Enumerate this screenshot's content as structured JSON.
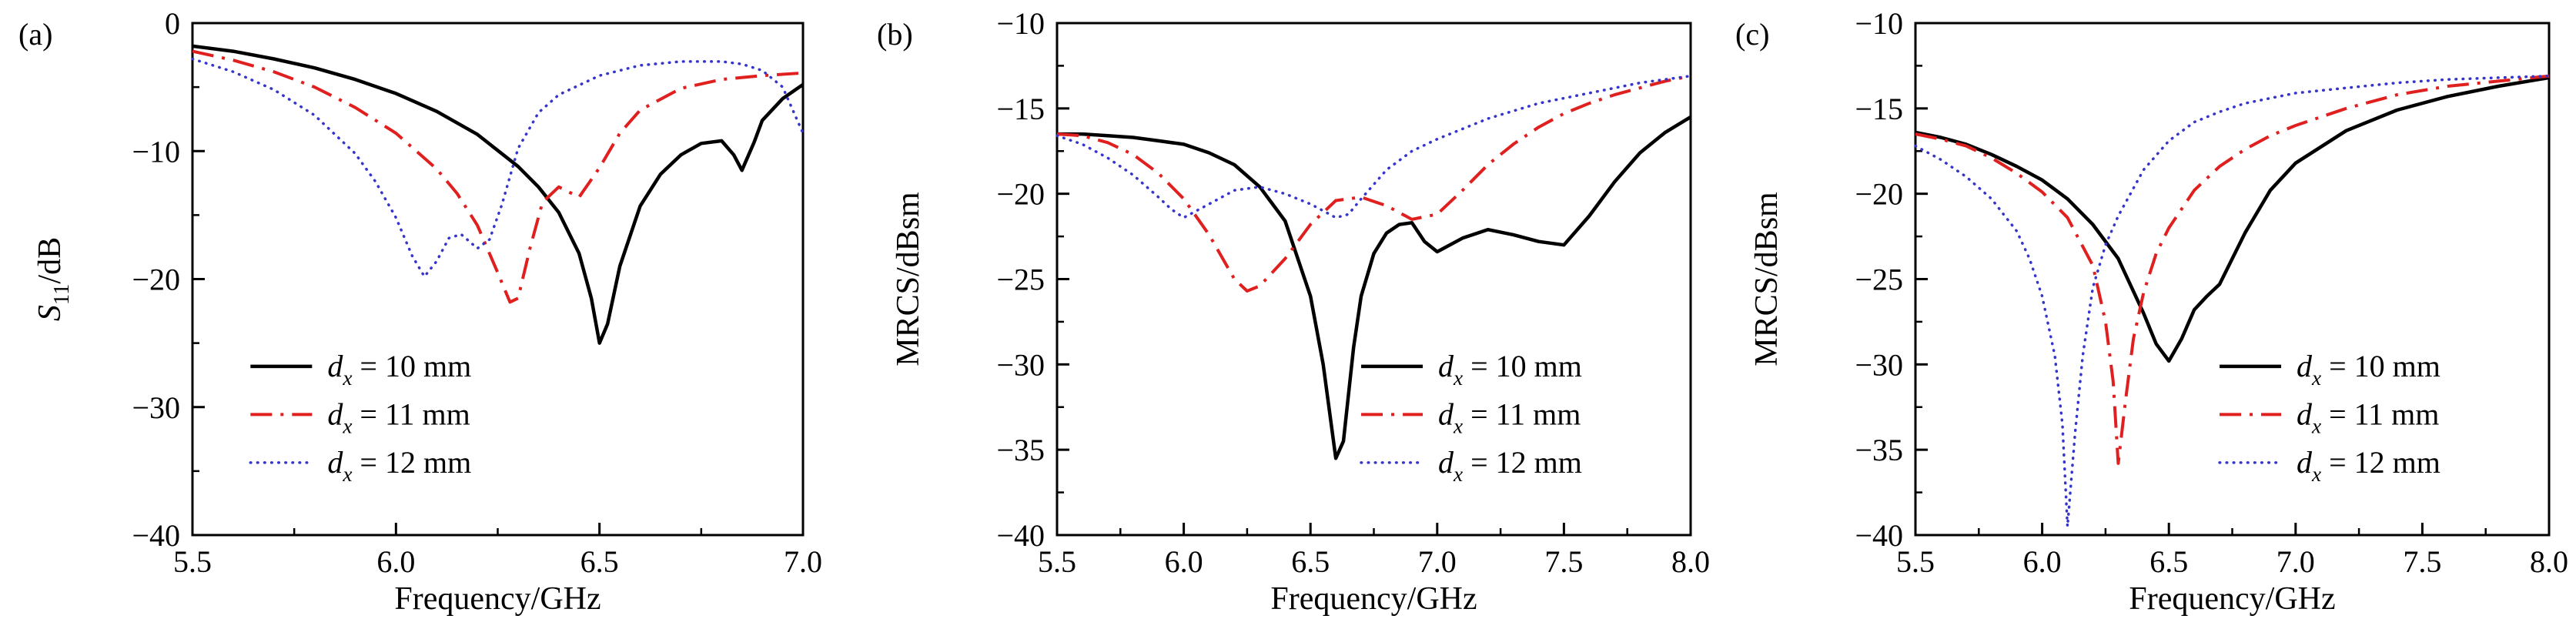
{
  "figure": {
    "background": "#ffffff",
    "axis_color": "#000000",
    "text_color": "#000000"
  },
  "chart_data": [
    {
      "type": "line",
      "panel_label": "(a)",
      "xlabel": "Frequency/GHz",
      "ylabel": "S11/dB",
      "ylabel_parts": [
        {
          "t": "S",
          "style": "italic"
        },
        {
          "t": "11",
          "sub": true
        },
        {
          "t": "/dB"
        }
      ],
      "xlim": [
        5.5,
        7.0
      ],
      "ylim": [
        -40,
        0
      ],
      "xticks": [
        5.5,
        6.0,
        6.5,
        7.0
      ],
      "xtick_labels": [
        "5.5",
        "6.0",
        "6.5",
        "7.0"
      ],
      "yticks": [
        0,
        -10,
        -20,
        -30,
        -40
      ],
      "ytick_labels": [
        "0",
        "−10",
        "−20",
        "−30",
        "−40"
      ],
      "x_minor_step": 0.25,
      "y_minor_step": 5,
      "grid": false,
      "legend": {
        "fx": 0.095,
        "fy": 0.69,
        "row_h": 0.094
      },
      "margins": {
        "l": 250,
        "r": 72,
        "t": 30,
        "b": 122
      },
      "series": [
        {
          "name": "dx = 10 mm",
          "label_parts": [
            {
              "t": "d",
              "style": "italic"
            },
            {
              "t": "x",
              "sub": true,
              "style": "italic"
            },
            {
              "t": " = 10 mm"
            }
          ],
          "color": "#000000",
          "dash": "solid",
          "width": 4.5,
          "x": [
            5.5,
            5.6,
            5.7,
            5.8,
            5.9,
            6.0,
            6.1,
            6.2,
            6.3,
            6.35,
            6.4,
            6.45,
            6.48,
            6.5,
            6.52,
            6.55,
            6.6,
            6.65,
            6.7,
            6.75,
            6.8,
            6.83,
            6.85,
            6.88,
            6.9,
            6.95,
            7.0
          ],
          "y": [
            -1.8,
            -2.2,
            -2.8,
            -3.5,
            -4.4,
            -5.5,
            -6.9,
            -8.7,
            -11.2,
            -12.8,
            -14.8,
            -18,
            -21.5,
            -25,
            -23.5,
            -19,
            -14.3,
            -11.8,
            -10.3,
            -9.4,
            -9.2,
            -10.3,
            -11.5,
            -9.3,
            -7.6,
            -5.9,
            -4.8
          ]
        },
        {
          "name": "dx = 11 mm",
          "label_parts": [
            {
              "t": "d",
              "style": "italic"
            },
            {
              "t": "x",
              "sub": true,
              "style": "italic"
            },
            {
              "t": " = 11 mm"
            }
          ],
          "color": "#e01f1f",
          "dash": "dashdot",
          "width": 4,
          "x": [
            5.5,
            5.6,
            5.7,
            5.8,
            5.9,
            6.0,
            6.1,
            6.15,
            6.2,
            6.25,
            6.28,
            6.3,
            6.33,
            6.36,
            6.4,
            6.45,
            6.5,
            6.55,
            6.6,
            6.7,
            6.8,
            6.9,
            7.0
          ],
          "y": [
            -2.2,
            -2.9,
            -3.8,
            -5.0,
            -6.6,
            -8.6,
            -11.4,
            -13.3,
            -15.8,
            -19.5,
            -21.8,
            -21.5,
            -17.5,
            -14.0,
            -12.8,
            -13.6,
            -11.3,
            -8.6,
            -6.8,
            -5.1,
            -4.4,
            -4.1,
            -3.9
          ]
        },
        {
          "name": "dx = 12 mm",
          "label_parts": [
            {
              "t": "d",
              "style": "italic"
            },
            {
              "t": "x",
              "sub": true,
              "style": "italic"
            },
            {
              "t": " = 12 mm"
            }
          ],
          "color": "#3535cc",
          "dash": "dot",
          "width": 3.5,
          "x": [
            5.5,
            5.6,
            5.7,
            5.8,
            5.9,
            5.95,
            6.0,
            6.04,
            6.07,
            6.1,
            6.13,
            6.16,
            6.2,
            6.23,
            6.26,
            6.3,
            6.35,
            6.4,
            6.5,
            6.6,
            6.7,
            6.8,
            6.85,
            6.9,
            6.95,
            7.0
          ],
          "y": [
            -2.8,
            -3.8,
            -5.2,
            -7.2,
            -10.2,
            -12.4,
            -15.2,
            -18.2,
            -19.8,
            -18.6,
            -16.8,
            -16.5,
            -17.6,
            -16.9,
            -14.2,
            -9.8,
            -7.0,
            -5.6,
            -4.1,
            -3.3,
            -3.0,
            -3.0,
            -3.2,
            -3.7,
            -5.0,
            -8.6
          ]
        }
      ]
    },
    {
      "type": "line",
      "panel_label": "(b)",
      "xlabel": "Frequency/GHz",
      "ylabel": "MRCS/dBsm",
      "ylabel_parts": [
        {
          "t": "MRCS/dBsm"
        }
      ],
      "xlim": [
        5.5,
        8.0
      ],
      "ylim": [
        -40,
        -10
      ],
      "xticks": [
        5.5,
        6.0,
        6.5,
        7.0,
        7.5,
        8.0
      ],
      "xtick_labels": [
        "5.5",
        "6.0",
        "6.5",
        "7.0",
        "7.5",
        "8.0"
      ],
      "yticks": [
        -10,
        -15,
        -20,
        -25,
        -30,
        -35,
        -40
      ],
      "ytick_labels": [
        "−10",
        "−15",
        "−20",
        "−25",
        "−30",
        "−35",
        "−40"
      ],
      "x_minor_step": 0.25,
      "y_minor_step": 2.5,
      "grid": false,
      "legend": {
        "fx": 0.48,
        "fy": 0.69,
        "row_h": 0.094
      },
      "margins": {
        "l": 258,
        "r": 34,
        "t": 30,
        "b": 122
      },
      "series": [
        {
          "name": "dx = 10 mm",
          "label_parts": [
            {
              "t": "d",
              "style": "italic"
            },
            {
              "t": "x",
              "sub": true,
              "style": "italic"
            },
            {
              "t": " = 10 mm"
            }
          ],
          "color": "#000000",
          "dash": "solid",
          "width": 4.5,
          "x": [
            5.5,
            5.6,
            5.7,
            5.8,
            5.9,
            6.0,
            6.1,
            6.2,
            6.3,
            6.4,
            6.5,
            6.55,
            6.6,
            6.63,
            6.67,
            6.7,
            6.75,
            6.8,
            6.85,
            6.9,
            6.95,
            7.0,
            7.1,
            7.2,
            7.3,
            7.4,
            7.5,
            7.6,
            7.7,
            7.8,
            7.9,
            8.0
          ],
          "y": [
            -16.5,
            -16.5,
            -16.6,
            -16.7,
            -16.9,
            -17.1,
            -17.6,
            -18.3,
            -19.6,
            -21.6,
            -26.0,
            -30.0,
            -35.5,
            -34.5,
            -29.0,
            -26.0,
            -23.5,
            -22.3,
            -21.8,
            -21.7,
            -22.8,
            -23.4,
            -22.6,
            -22.1,
            -22.4,
            -22.8,
            -23.0,
            -21.3,
            -19.3,
            -17.6,
            -16.4,
            -15.5
          ]
        },
        {
          "name": "dx = 11 mm",
          "label_parts": [
            {
              "t": "d",
              "style": "italic"
            },
            {
              "t": "x",
              "sub": true,
              "style": "italic"
            },
            {
              "t": " = 11 mm"
            }
          ],
          "color": "#e01f1f",
          "dash": "dashdot",
          "width": 4,
          "x": [
            5.5,
            5.6,
            5.7,
            5.8,
            5.9,
            6.0,
            6.1,
            6.2,
            6.25,
            6.3,
            6.4,
            6.5,
            6.6,
            6.7,
            6.8,
            6.9,
            7.0,
            7.1,
            7.2,
            7.3,
            7.4,
            7.5,
            7.6,
            7.7,
            7.8,
            7.9,
            8.0
          ],
          "y": [
            -16.5,
            -16.6,
            -17.0,
            -17.7,
            -18.8,
            -20.3,
            -22.4,
            -25.0,
            -25.7,
            -25.4,
            -23.8,
            -21.8,
            -20.4,
            -20.2,
            -20.7,
            -21.5,
            -21.2,
            -19.8,
            -18.3,
            -17.1,
            -16.1,
            -15.3,
            -14.7,
            -14.2,
            -13.8,
            -13.4,
            -13.1
          ]
        },
        {
          "name": "dx = 12 mm",
          "label_parts": [
            {
              "t": "d",
              "style": "italic"
            },
            {
              "t": "x",
              "sub": true,
              "style": "italic"
            },
            {
              "t": " = 12 mm"
            }
          ],
          "color": "#3535cc",
          "dash": "dot",
          "width": 3.5,
          "x": [
            5.5,
            5.6,
            5.7,
            5.8,
            5.9,
            5.95,
            6.0,
            6.1,
            6.2,
            6.3,
            6.4,
            6.5,
            6.55,
            6.6,
            6.65,
            6.7,
            6.8,
            6.9,
            7.0,
            7.2,
            7.4,
            7.6,
            7.8,
            8.0
          ],
          "y": [
            -16.6,
            -17.1,
            -17.9,
            -18.9,
            -20.2,
            -20.9,
            -21.4,
            -20.6,
            -19.8,
            -19.6,
            -20.0,
            -20.6,
            -21.0,
            -21.4,
            -21.2,
            -20.3,
            -18.6,
            -17.5,
            -16.8,
            -15.6,
            -14.7,
            -14.1,
            -13.5,
            -13.1
          ]
        }
      ]
    },
    {
      "type": "line",
      "panel_label": "(c)",
      "xlabel": "Frequency/GHz",
      "ylabel": "MRCS/dBsm",
      "ylabel_parts": [
        {
          "t": "MRCS/dBsm"
        }
      ],
      "xlim": [
        5.5,
        8.0
      ],
      "ylim": [
        -40,
        -10
      ],
      "xticks": [
        5.5,
        6.0,
        6.5,
        7.0,
        7.5,
        8.0
      ],
      "xtick_labels": [
        "5.5",
        "6.0",
        "6.5",
        "7.0",
        "7.5",
        "8.0"
      ],
      "yticks": [
        -10,
        -15,
        -20,
        -25,
        -30,
        -35,
        -40
      ],
      "ytick_labels": [
        "−10",
        "−15",
        "−20",
        "−25",
        "−30",
        "−35",
        "−40"
      ],
      "x_minor_step": 0.25,
      "y_minor_step": 2.5,
      "grid": false,
      "legend": {
        "fx": 0.48,
        "fy": 0.69,
        "row_h": 0.094
      },
      "margins": {
        "l": 258,
        "r": 34,
        "t": 30,
        "b": 122
      },
      "series": [
        {
          "name": "dx = 10 mm",
          "label_parts": [
            {
              "t": "d",
              "style": "italic"
            },
            {
              "t": "x",
              "sub": true,
              "style": "italic"
            },
            {
              "t": " = 10 mm"
            }
          ],
          "color": "#000000",
          "dash": "solid",
          "width": 4.5,
          "x": [
            5.5,
            5.6,
            5.7,
            5.8,
            5.9,
            6.0,
            6.1,
            6.2,
            6.3,
            6.4,
            6.45,
            6.5,
            6.55,
            6.6,
            6.65,
            6.7,
            6.8,
            6.9,
            7.0,
            7.2,
            7.4,
            7.6,
            7.8,
            8.0
          ],
          "y": [
            -16.4,
            -16.7,
            -17.1,
            -17.7,
            -18.4,
            -19.2,
            -20.3,
            -21.8,
            -23.8,
            -27.0,
            -28.8,
            -29.8,
            -28.5,
            -26.8,
            -26.0,
            -25.3,
            -22.3,
            -19.8,
            -18.2,
            -16.3,
            -15.1,
            -14.3,
            -13.7,
            -13.2
          ]
        },
        {
          "name": "dx = 11 mm",
          "label_parts": [
            {
              "t": "d",
              "style": "italic"
            },
            {
              "t": "x",
              "sub": true,
              "style": "italic"
            },
            {
              "t": " = 11 mm"
            }
          ],
          "color": "#e01f1f",
          "dash": "dashdot",
          "width": 4,
          "x": [
            5.5,
            5.6,
            5.7,
            5.8,
            5.9,
            6.0,
            6.1,
            6.2,
            6.25,
            6.28,
            6.3,
            6.33,
            6.36,
            6.4,
            6.45,
            6.5,
            6.6,
            6.7,
            6.8,
            6.9,
            7.0,
            7.2,
            7.4,
            7.6,
            7.8,
            8.0
          ],
          "y": [
            -16.5,
            -16.8,
            -17.2,
            -17.9,
            -18.8,
            -19.9,
            -21.4,
            -24.2,
            -27.5,
            -31.0,
            -35.8,
            -32.0,
            -28.5,
            -25.8,
            -23.5,
            -22.0,
            -19.8,
            -18.4,
            -17.4,
            -16.6,
            -16.0,
            -15.0,
            -14.2,
            -13.7,
            -13.4,
            -13.1
          ]
        },
        {
          "name": "dx = 12 mm",
          "label_parts": [
            {
              "t": "d",
              "style": "italic"
            },
            {
              "t": "x",
              "sub": true,
              "style": "italic"
            },
            {
              "t": " = 12 mm"
            }
          ],
          "color": "#3535cc",
          "dash": "dot",
          "width": 3.5,
          "x": [
            5.5,
            5.6,
            5.7,
            5.8,
            5.9,
            5.95,
            6.0,
            6.05,
            6.08,
            6.1,
            6.13,
            6.16,
            6.2,
            6.25,
            6.3,
            6.4,
            6.5,
            6.6,
            6.7,
            6.8,
            7.0,
            7.2,
            7.4,
            7.6,
            7.8,
            8.0
          ],
          "y": [
            -17.2,
            -18.0,
            -19.0,
            -20.3,
            -22.2,
            -23.8,
            -26.0,
            -29.5,
            -33.5,
            -39.5,
            -34.0,
            -29.5,
            -25.5,
            -23.0,
            -21.3,
            -18.6,
            -16.9,
            -15.8,
            -15.2,
            -14.7,
            -14.1,
            -13.8,
            -13.5,
            -13.3,
            -13.2,
            -13.1
          ]
        }
      ]
    }
  ]
}
